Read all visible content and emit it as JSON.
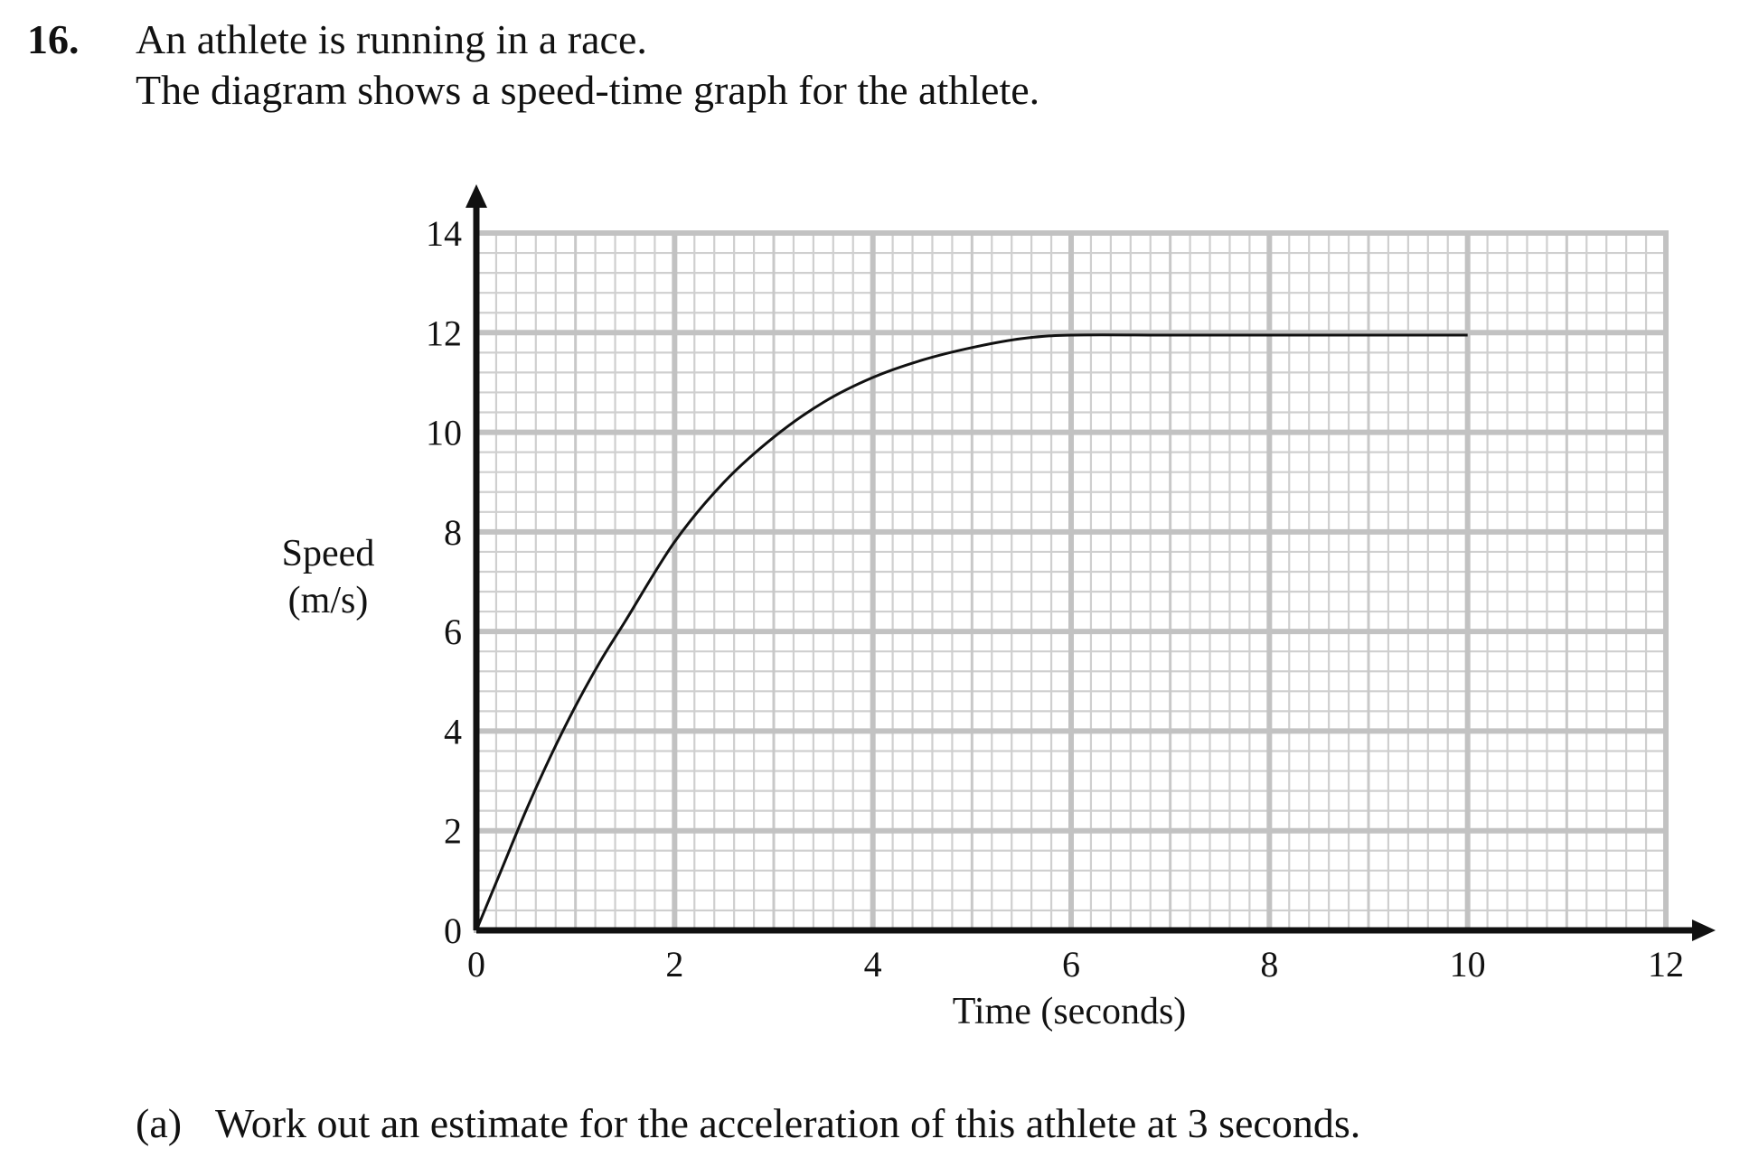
{
  "question": {
    "number": "16.",
    "line1": "An athlete is running in a race.",
    "line2": "The diagram shows a speed-time graph for the athlete.",
    "part_label": "(a)",
    "part_text": "Work out an estimate for the acceleration of this athlete at 3 seconds."
  },
  "chart_data": {
    "type": "line",
    "title": "",
    "xlabel": "Time (seconds)",
    "ylabel_lines": [
      "Speed",
      "(m/s)"
    ],
    "xlim": [
      0,
      12
    ],
    "ylim": [
      0,
      14
    ],
    "x_ticks": [
      0,
      2,
      4,
      6,
      8,
      10,
      12
    ],
    "y_ticks": [
      0,
      2,
      4,
      6,
      8,
      10,
      12,
      14
    ],
    "grid": true,
    "series": [
      {
        "points": [
          [
            0,
            0
          ],
          [
            0.25,
            1.2
          ],
          [
            0.5,
            2.4
          ],
          [
            0.75,
            3.5
          ],
          [
            1,
            4.5
          ],
          [
            1.25,
            5.4
          ],
          [
            1.5,
            6.2
          ],
          [
            2,
            7.8
          ],
          [
            2.5,
            9.0
          ],
          [
            3,
            9.9
          ],
          [
            3.5,
            10.6
          ],
          [
            4,
            11.1
          ],
          [
            4.5,
            11.45
          ],
          [
            5,
            11.7
          ],
          [
            5.5,
            11.88
          ],
          [
            6,
            11.95
          ],
          [
            7,
            11.95
          ],
          [
            8,
            11.95
          ],
          [
            9,
            11.95
          ],
          [
            10,
            11.95
          ]
        ]
      }
    ]
  }
}
